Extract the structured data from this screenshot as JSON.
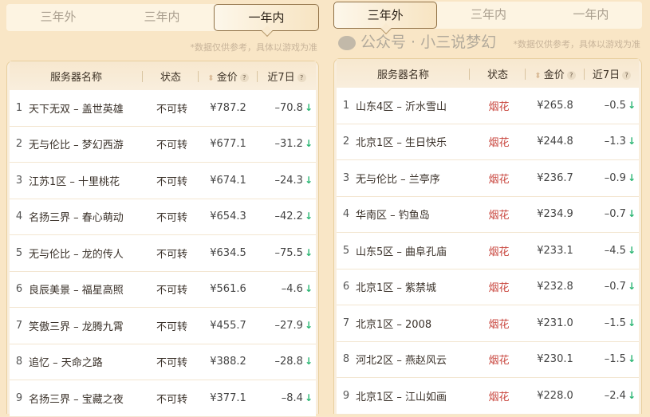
{
  "panels": [
    {
      "tabs": [
        "三年外",
        "三年内",
        "一年内"
      ],
      "active_tab": 2,
      "note": "*数据仅供参考，具体以游戏为准",
      "headers": {
        "name": "服务器名称",
        "status": "状态",
        "price": "金价",
        "change": "近7日"
      },
      "rows": [
        {
          "rank": "1",
          "name": "天下无双 – 盖世英雄",
          "status": "不可转",
          "price": "¥787.2",
          "change": "–70.8"
        },
        {
          "rank": "2",
          "name": "无与伦比 – 梦幻西游",
          "status": "不可转",
          "price": "¥677.1",
          "change": "–31.2"
        },
        {
          "rank": "3",
          "name": "江苏1区 – 十里桃花",
          "status": "不可转",
          "price": "¥674.1",
          "change": "–24.3"
        },
        {
          "rank": "4",
          "name": "名扬三界 – 春心萌动",
          "status": "不可转",
          "price": "¥654.3",
          "change": "–42.2"
        },
        {
          "rank": "5",
          "name": "无与伦比 – 龙的传人",
          "status": "不可转",
          "price": "¥634.5",
          "change": "–75.5"
        },
        {
          "rank": "6",
          "name": "良辰美景 – 福星高照",
          "status": "不可转",
          "price": "¥561.6",
          "change": "–4.6"
        },
        {
          "rank": "7",
          "name": "笑傲三界 – 龙腾九霄",
          "status": "不可转",
          "price": "¥455.7",
          "change": "–27.9"
        },
        {
          "rank": "8",
          "name": "追忆 – 天命之路",
          "status": "不可转",
          "price": "¥388.2",
          "change": "–28.8"
        },
        {
          "rank": "9",
          "name": "名扬三界 – 宝藏之夜",
          "status": "不可转",
          "price": "¥377.1",
          "change": "–8.4"
        }
      ]
    },
    {
      "tabs": [
        "三年外",
        "三年内",
        "一年内"
      ],
      "active_tab": 0,
      "note": "*数据仅供参考，具体以游戏为准",
      "headers": {
        "name": "服务器名称",
        "status": "状态",
        "price": "金价",
        "change": "近7日"
      },
      "rows": [
        {
          "rank": "1",
          "name": "山东4区 – 沂水雪山",
          "status": "烟花",
          "price": "¥265.8",
          "change": "–0.5"
        },
        {
          "rank": "2",
          "name": "北京1区 – 生日快乐",
          "status": "烟花",
          "price": "¥244.8",
          "change": "–1.3"
        },
        {
          "rank": "3",
          "name": "无与伦比 – 兰亭序",
          "status": "烟花",
          "price": "¥236.7",
          "change": "–0.9"
        },
        {
          "rank": "4",
          "name": "华南区 – 钓鱼岛",
          "status": "烟花",
          "price": "¥234.9",
          "change": "–0.7"
        },
        {
          "rank": "5",
          "name": "山东5区 – 曲阜孔庙",
          "status": "烟花",
          "price": "¥233.1",
          "change": "–4.5"
        },
        {
          "rank": "6",
          "name": "北京1区 – 紫禁城",
          "status": "烟花",
          "price": "¥232.8",
          "change": "–0.7"
        },
        {
          "rank": "7",
          "name": "北京1区 – 2008",
          "status": "烟花",
          "price": "¥231.0",
          "change": "–1.5"
        },
        {
          "rank": "8",
          "name": "河北2区 – 燕赵风云",
          "status": "烟花",
          "price": "¥230.1",
          "change": "–1.5"
        },
        {
          "rank": "9",
          "name": "北京1区 – 江山如画",
          "status": "烟花",
          "price": "¥228.0",
          "change": "–2.4"
        }
      ]
    }
  ],
  "watermark": "公众号 · 小三说梦幻",
  "colors": {
    "status_fire": "#c8443c",
    "down_arrow": "#2bb673",
    "tab_border": "#8f7045"
  }
}
